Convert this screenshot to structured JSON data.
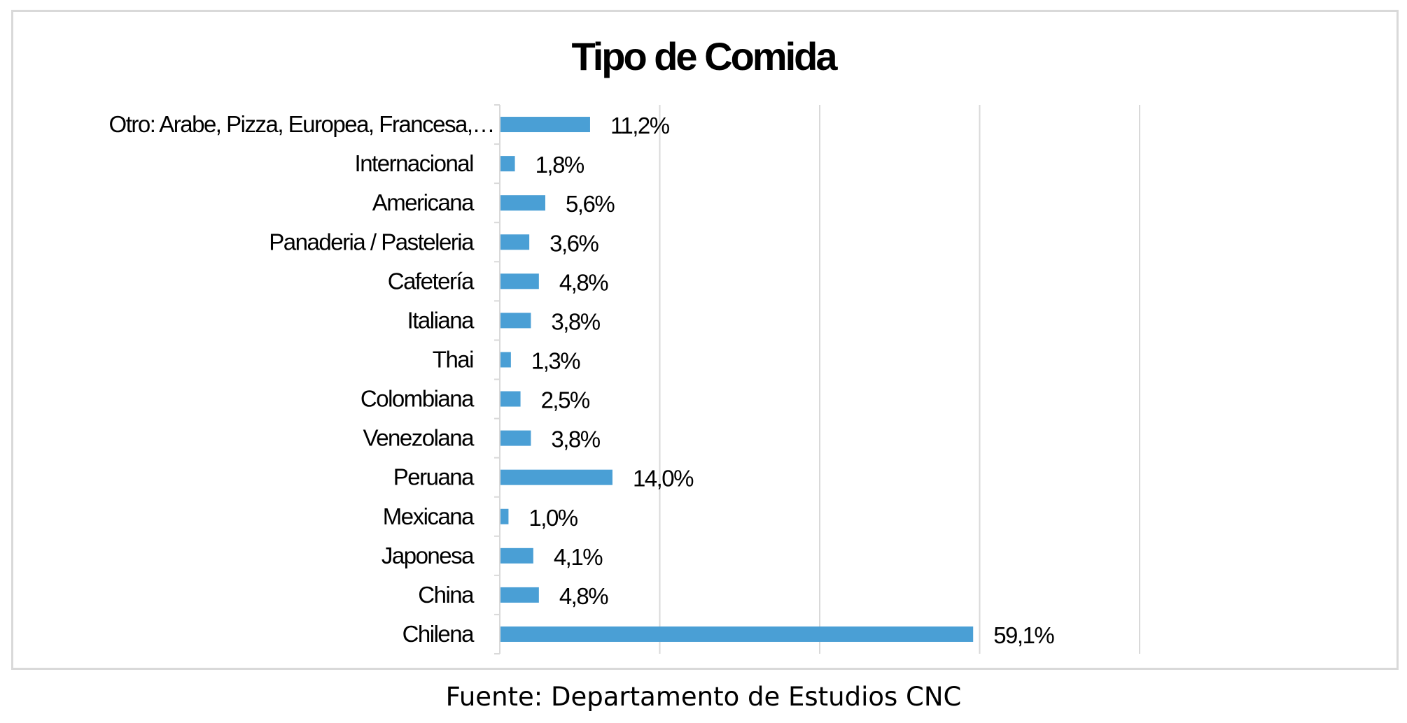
{
  "chart_data": {
    "type": "bar",
    "orientation": "horizontal",
    "title": "Tipo de Comida",
    "xlabel": "",
    "ylabel": "",
    "xlim": [
      0,
      80
    ],
    "grid": true,
    "legend": "none",
    "categories": [
      "Otro: Arabe, Pizza,  Europea, Francesa,…",
      "Internacional",
      "Americana",
      "Panaderia / Pasteleria",
      "Cafetería",
      "Italiana",
      "Thai",
      "Colombiana",
      "Venezolana",
      "Peruana",
      "Mexicana",
      "Japonesa",
      "China",
      "Chilena"
    ],
    "values": [
      11.2,
      1.8,
      5.6,
      3.6,
      4.8,
      3.8,
      1.3,
      2.5,
      3.8,
      14.0,
      1.0,
      4.1,
      4.8,
      59.1
    ],
    "data_labels": [
      "11,2%",
      "1,8%",
      "5,6%",
      "3,6%",
      "4,8%",
      "3,8%",
      "1,3%",
      "2,5%",
      "3,8%",
      "14,0%",
      "1,0%",
      "4,1%",
      "4,8%",
      "59,1%"
    ],
    "bar_color": "#4a9fd5",
    "grid_color": "#d9d9d9"
  },
  "source_note": "Fuente: Departamento de Estudios CNC"
}
